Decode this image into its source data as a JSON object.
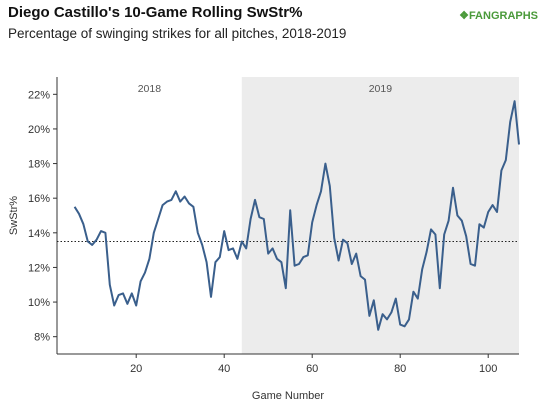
{
  "header": {
    "title": "Diego Castillo's 10-Game Rolling SwStr%",
    "subtitle": "Percentage of swinging strikes for all pitches, 2018-2019",
    "logo_text": "FANGRAPHS"
  },
  "chart_data": {
    "type": "line",
    "title": "Diego Castillo's 10-Game Rolling SwStr%",
    "subtitle": "Percentage of swinging strikes for all pitches, 2018-2019",
    "xlabel": "Game Number",
    "ylabel": "SwStr%",
    "xlim": [
      2,
      107
    ],
    "ylim": [
      7,
      23
    ],
    "xticks": [
      20,
      40,
      60,
      80,
      100
    ],
    "yticks": [
      8,
      10,
      12,
      14,
      16,
      18,
      20,
      22
    ],
    "ytick_labels": [
      "8%",
      "10%",
      "12%",
      "14%",
      "16%",
      "18%",
      "20%",
      "22%"
    ],
    "regions": [
      {
        "label": "2018",
        "start": 2,
        "end": 44,
        "color": "#ffffff"
      },
      {
        "label": "2019",
        "start": 44,
        "end": 107,
        "color": "#ececec"
      }
    ],
    "reference_line": {
      "y": 13.5,
      "style": "dotted"
    },
    "grid": false,
    "line_color": "#3a5f8c",
    "series": [
      {
        "x": [
          6,
          7,
          8,
          9,
          10,
          11,
          12,
          13,
          14,
          15,
          16,
          17,
          18,
          19,
          20,
          21,
          22,
          23,
          24,
          25,
          26,
          27,
          28,
          29,
          30,
          31,
          32,
          33,
          34,
          35,
          36,
          37,
          38,
          39,
          40,
          41,
          42,
          43,
          44,
          45,
          46,
          47,
          48,
          49,
          50,
          51,
          52,
          53,
          54,
          55,
          56,
          57,
          58,
          59,
          60,
          61,
          62,
          63,
          64,
          65,
          66,
          67,
          68,
          69,
          70,
          71,
          72,
          73,
          74,
          75,
          76,
          77,
          78,
          79,
          80,
          81,
          82,
          83,
          84,
          85,
          86,
          87,
          88,
          89,
          90,
          91,
          92,
          93,
          94,
          95,
          96,
          97,
          98,
          99,
          100,
          101,
          102,
          103,
          104,
          105,
          106,
          107
        ],
        "values": [
          15.5,
          15.1,
          14.5,
          13.5,
          13.3,
          13.6,
          14.1,
          14.0,
          11.0,
          9.8,
          10.4,
          10.5,
          9.9,
          10.5,
          9.8,
          11.2,
          11.7,
          12.5,
          14.0,
          14.8,
          15.6,
          15.8,
          15.9,
          16.4,
          15.8,
          16.1,
          15.7,
          15.5,
          14.0,
          13.3,
          12.3,
          10.3,
          12.3,
          12.6,
          14.1,
          13.0,
          13.1,
          12.5,
          13.5,
          13.1,
          14.8,
          15.9,
          14.9,
          14.8,
          12.8,
          13.1,
          12.5,
          12.3,
          10.8,
          15.3,
          12.1,
          12.2,
          12.6,
          12.7,
          14.6,
          15.6,
          16.4,
          18.0,
          16.7,
          13.7,
          12.4,
          13.6,
          13.4,
          12.2,
          12.8,
          11.5,
          11.3,
          9.2,
          10.1,
          8.4,
          9.3,
          9.0,
          9.4,
          10.2,
          8.7,
          8.6,
          9.0,
          10.6,
          10.2,
          11.9,
          12.9,
          14.2,
          13.9,
          10.8,
          13.9,
          14.7,
          16.6,
          15.0,
          14.7,
          13.8,
          12.2,
          12.1,
          14.5,
          14.3,
          15.2,
          15.6,
          15.2,
          17.6,
          18.2,
          20.4,
          21.6,
          19.1
        ]
      }
    ]
  }
}
